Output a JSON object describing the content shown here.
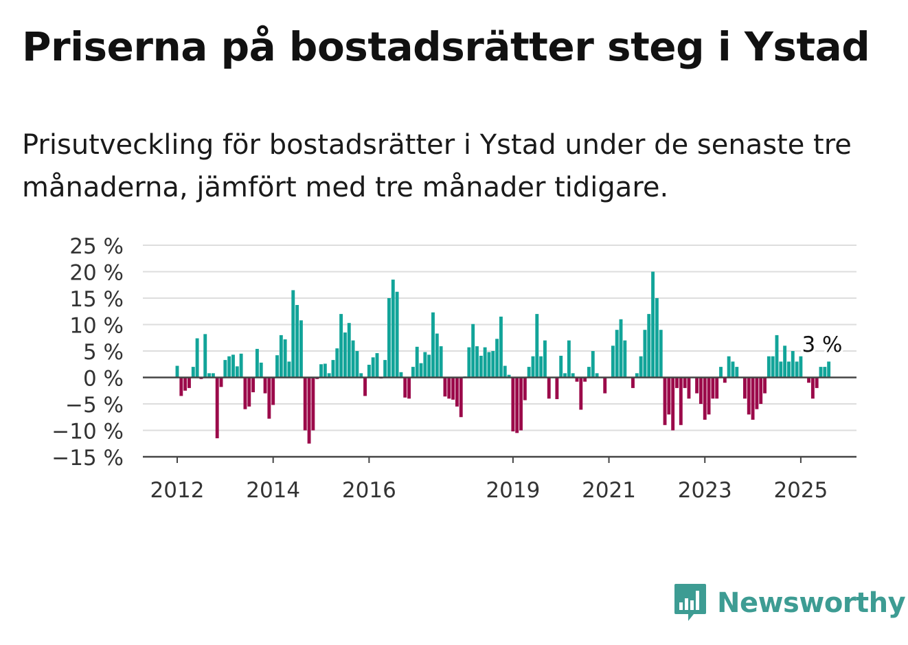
{
  "title": "Priserna på bostadsrätter steg i Ystad",
  "subtitle": "Prisutveckling för bostadsrätter i Ystad under de senaste tre månaderna, jämfört med tre månader tidigare.",
  "brand": {
    "name": "Newsworthy",
    "icon": "newsworthy-logo-icon"
  },
  "colors": {
    "positive": "#12a499",
    "negative": "#9b0a4a",
    "grid": "#dddddd",
    "axis": "#444444"
  },
  "chart_data": {
    "type": "bar",
    "ylim": [
      -15,
      25
    ],
    "yticks": [
      25,
      20,
      15,
      10,
      5,
      0,
      -5,
      -10,
      -15
    ],
    "ytick_labels": [
      "25 %",
      "20 %",
      "15 %",
      "10 %",
      "5 %",
      "0 %",
      "−5 %",
      "−10 %",
      "−15 %"
    ],
    "xtick_labels": [
      {
        "label": "2012",
        "index": 0
      },
      {
        "label": "2014",
        "index": 24
      },
      {
        "label": "2016",
        "index": 48
      },
      {
        "label": "2019",
        "index": 84
      },
      {
        "label": "2021",
        "index": 108
      },
      {
        "label": "2023",
        "index": 132
      },
      {
        "label": "2025",
        "index": 156
      }
    ],
    "grid": true,
    "annotation": {
      "text": "3 %",
      "index": 161
    },
    "values": [
      2.2,
      -3.5,
      -2.5,
      -2.0,
      2.0,
      7.4,
      -0.3,
      8.2,
      0.8,
      0.8,
      -11.5,
      -1.8,
      3.3,
      4.0,
      4.3,
      2.1,
      4.5,
      -6.0,
      -5.5,
      -2.8,
      5.4,
      2.8,
      -3.0,
      -7.8,
      -5.2,
      4.2,
      8.0,
      7.2,
      3.0,
      16.5,
      13.7,
      10.8,
      -10.0,
      -12.5,
      -10.0,
      -0.3,
      2.5,
      2.6,
      0.8,
      3.3,
      5.5,
      12.0,
      8.5,
      10.3,
      7.0,
      5.0,
      0.8,
      -3.5,
      2.4,
      3.8,
      4.6,
      -0.2,
      3.3,
      15.0,
      18.5,
      16.2,
      1.0,
      -3.8,
      -4.0,
      2.0,
      5.8,
      2.7,
      4.8,
      4.3,
      12.3,
      8.3,
      5.9,
      -3.6,
      -4.0,
      -4.2,
      -5.5,
      -7.5,
      0.2,
      5.7,
      10.1,
      5.9,
      4.1,
      5.7,
      4.8,
      5.0,
      7.3,
      11.5,
      2.2,
      0.5,
      -10.2,
      -10.5,
      -10.0,
      -4.3,
      2.0,
      4.0,
      12.0,
      4.0,
      7.0,
      -4.0,
      0.1,
      -4.1,
      4.1,
      0.8,
      7.0,
      0.8,
      -0.8,
      -6.1,
      -0.8,
      2.0,
      5.0,
      0.8,
      0.1,
      -3.0,
      0.1,
      6.0,
      9.0,
      11.0,
      7.0,
      0.1,
      -2.0,
      0.8,
      4.0,
      9.0,
      12.0,
      20.0,
      15.0,
      9.0,
      -9.0,
      -7.0,
      -10.0,
      -2.0,
      -9.0,
      -2.0,
      -4.0,
      0.1,
      -3.0,
      -5.0,
      -8.0,
      -7.0,
      -4.0,
      -4.0,
      2.0,
      -1.0,
      4.0,
      3.0,
      2.0,
      0.1,
      -4.0,
      -7.0,
      -8.0,
      -6.0,
      -5.0,
      -3.0,
      4.0,
      4.0,
      8.0,
      3.0,
      6.0,
      3.0,
      5.0,
      3.0,
      4.0,
      0.1,
      -1.0,
      -4.0,
      -2.0,
      2.0,
      2.0,
      3.0
    ]
  }
}
